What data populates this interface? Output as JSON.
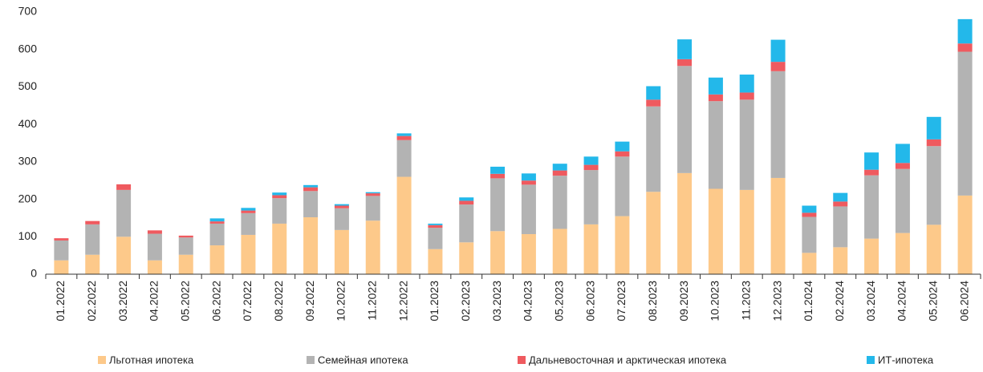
{
  "chart_data": {
    "type": "stacked_bar",
    "categories": [
      "01.2022",
      "02.2022",
      "03.2022",
      "04.2022",
      "05.2022",
      "06.2022",
      "07.2022",
      "08.2022",
      "09.2022",
      "10.2022",
      "11.2022",
      "12.2022",
      "01.2023",
      "02.2023",
      "03.2023",
      "04.2023",
      "05.2023",
      "06.2023",
      "07.2023",
      "08.2023",
      "09.2023",
      "10.2023",
      "11.2023",
      "12.2023",
      "01.2024",
      "02.2024",
      "03.2024",
      "04.2024",
      "05.2024",
      "06.2024"
    ],
    "series": [
      {
        "name": "Льготная ипотека",
        "color": "#fdc98a",
        "values": [
          37,
          52,
          100,
          37,
          52,
          77,
          105,
          135,
          152,
          118,
          143,
          260,
          67,
          85,
          115,
          107,
          121,
          133,
          155,
          220,
          270,
          228,
          225,
          257,
          57,
          72,
          95,
          110,
          132,
          210
        ]
      },
      {
        "name": "Семейная ипотека",
        "color": "#b3b3b3",
        "values": [
          53,
          81,
          125,
          71,
          46,
          58,
          58,
          68,
          70,
          58,
          66,
          98,
          57,
          101,
          141,
          132,
          142,
          145,
          159,
          228,
          286,
          234,
          241,
          285,
          96,
          109,
          169,
          171,
          210,
          384
        ]
      },
      {
        "name": "Дальневосточная и арктическая ипотека",
        "color": "#ef5a5f",
        "values": [
          6,
          9,
          15,
          9,
          5,
          6,
          7,
          8,
          10,
          7,
          7,
          11,
          7,
          10,
          12,
          11,
          14,
          14,
          14,
          18,
          18,
          18,
          19,
          25,
          11,
          13,
          15,
          16,
          18,
          22
        ]
      },
      {
        "name": "ИТ-ипотека",
        "color": "#23b8ea",
        "values": [
          0,
          0,
          0,
          0,
          0,
          8,
          7,
          7,
          6,
          4,
          3,
          7,
          4,
          9,
          19,
          19,
          18,
          22,
          26,
          36,
          53,
          45,
          48,
          59,
          19,
          23,
          46,
          51,
          60,
          65
        ]
      }
    ],
    "ylim": [
      0,
      700
    ],
    "yticks": [
      0,
      100,
      200,
      300,
      400,
      500,
      600,
      700
    ],
    "grid": false
  }
}
